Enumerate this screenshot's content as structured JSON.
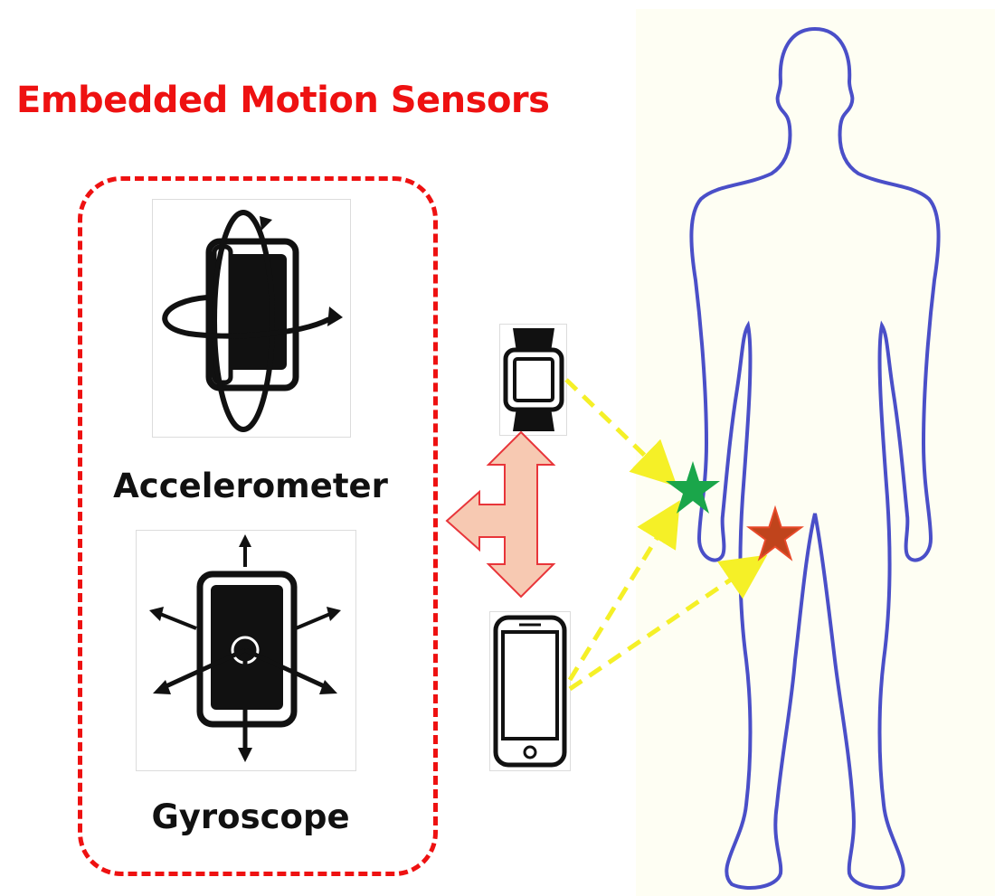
{
  "title": "Embedded Motion Sensors",
  "sensors": {
    "accelerometer_label": "Accelerometer",
    "gyroscope_label": "Gyroscope"
  },
  "devices": [
    "smartwatch",
    "smartphone"
  ],
  "body_markers": [
    {
      "name": "wrist-marker",
      "color": "#1aa64a"
    },
    {
      "name": "thigh-marker",
      "color": "#c0441c"
    }
  ],
  "colors": {
    "title": "#ee1111",
    "box_border": "#ee1111",
    "link_arrows": "#f5f027",
    "double_arrow_fill": "#f7c9b2",
    "double_arrow_stroke": "#e8353a",
    "body_outline": "#4a4fc8"
  }
}
